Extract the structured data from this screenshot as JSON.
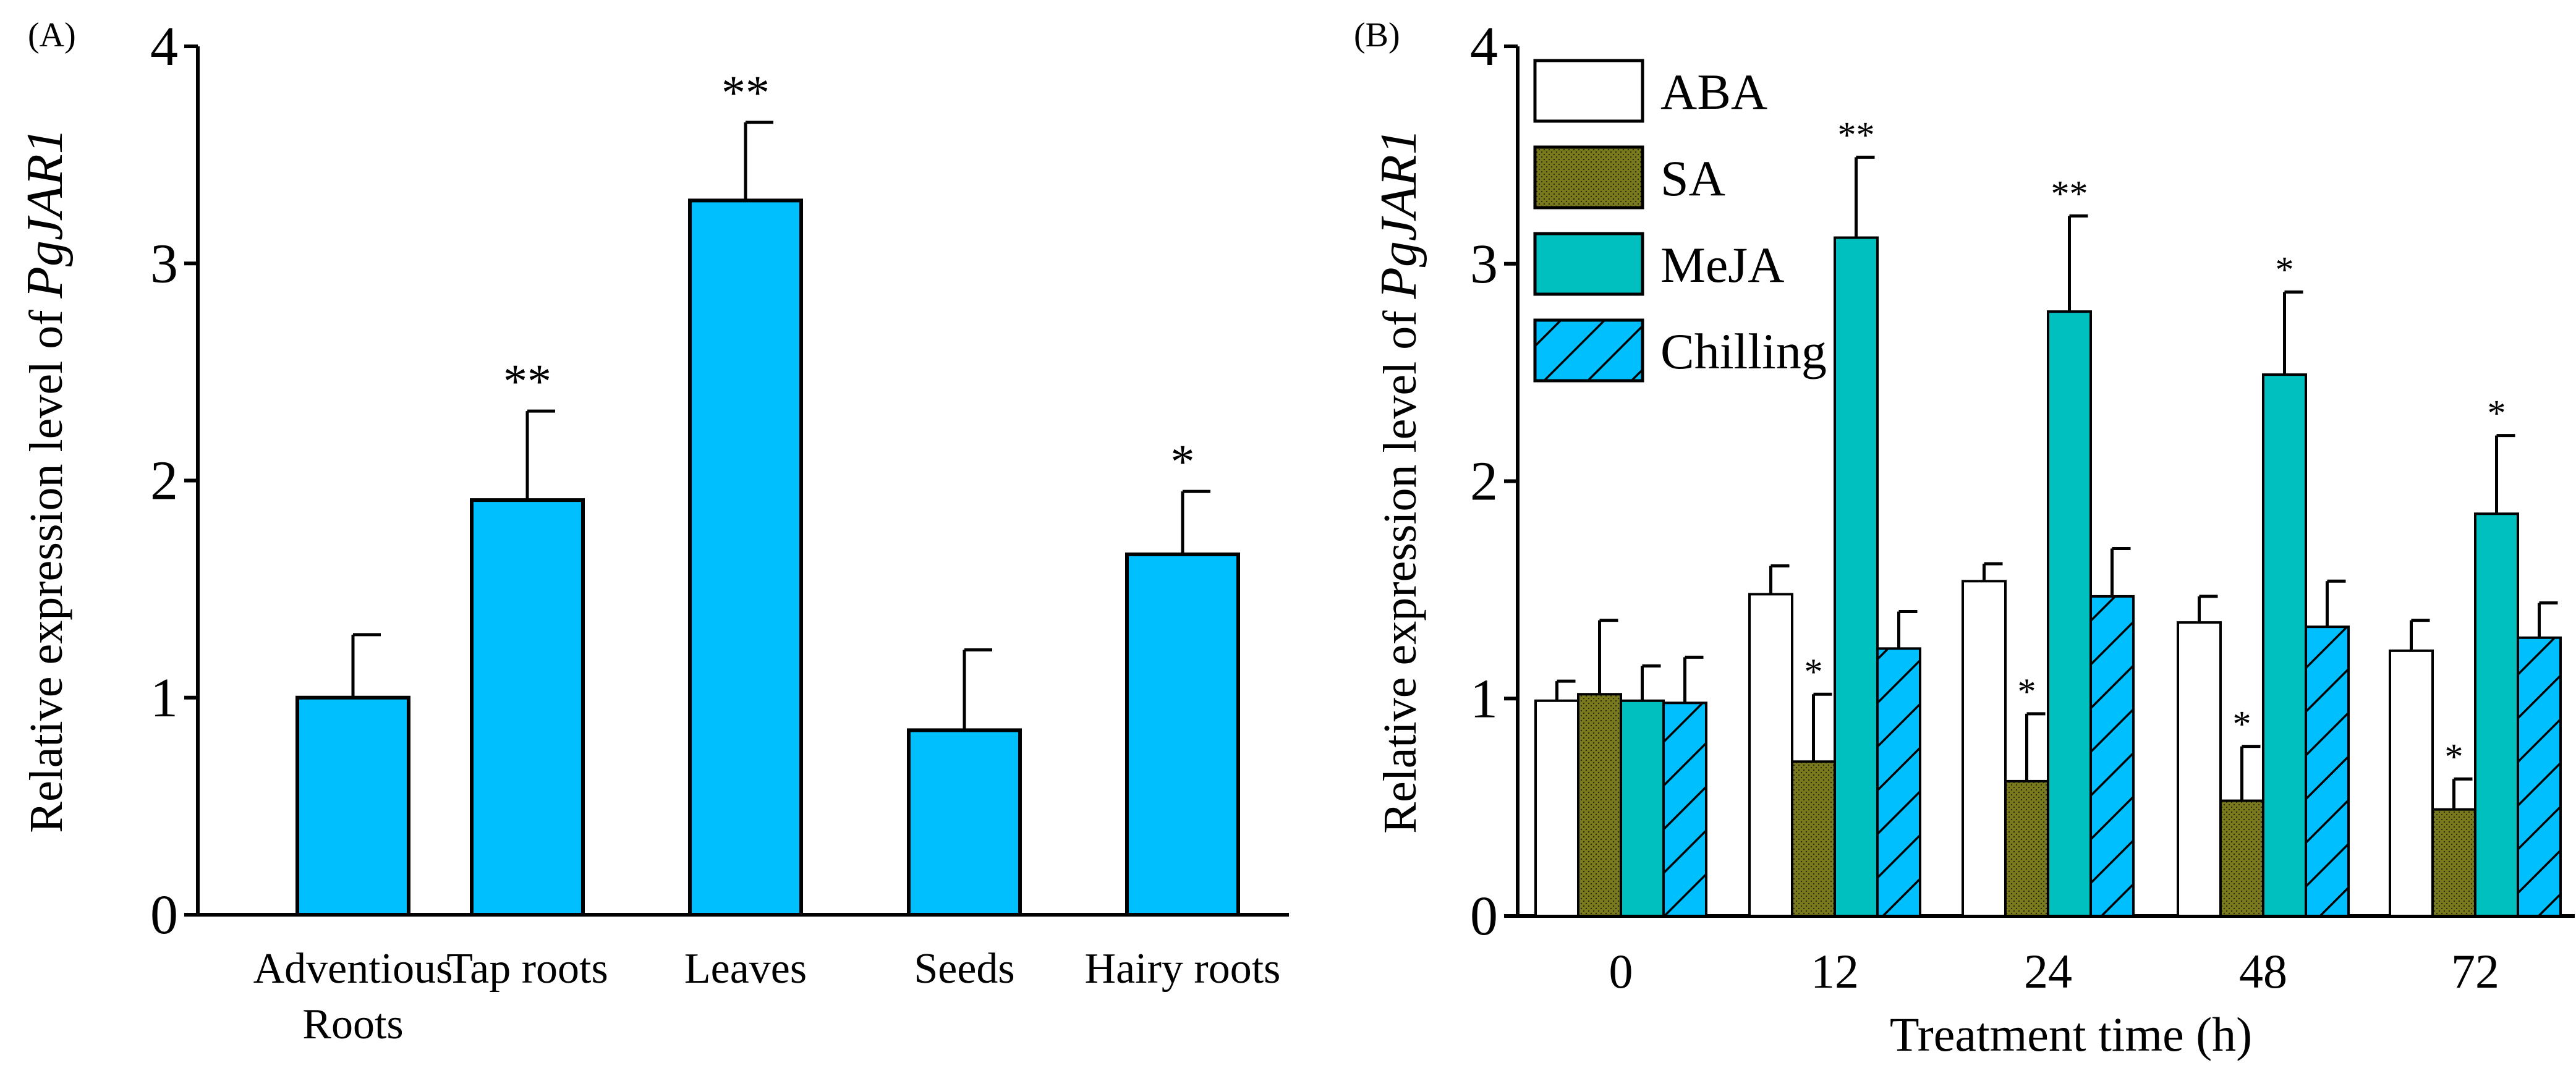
{
  "chart_data": [
    {
      "type": "bar",
      "panel_label": "(A)",
      "ylabel_prefix": "Relative expression level of ",
      "ylabel_gene": "PgJAR1",
      "xlabel": "",
      "ylim": [
        0,
        4
      ],
      "yticks": [
        "0",
        "1",
        "2",
        "3",
        "4"
      ],
      "categories": [
        "Adventious|Roots",
        "Tap roots",
        "Leaves",
        "Seeds",
        "Hairy roots"
      ],
      "values": [
        1.0,
        1.91,
        3.29,
        0.85,
        1.66
      ],
      "error_top": [
        1.29,
        2.32,
        3.65,
        1.22,
        1.95
      ],
      "significance": [
        "",
        "**",
        "**",
        "",
        "*"
      ],
      "color": "#00BFFF"
    },
    {
      "type": "bar",
      "panel_label": "(B)",
      "ylabel_prefix": "Relative expression level of ",
      "ylabel_gene": "PgJAR1",
      "xlabel": "Treatment time (h)",
      "ylim": [
        0,
        4
      ],
      "yticks": [
        "0",
        "1",
        "2",
        "3",
        "4"
      ],
      "categories": [
        "0",
        "12",
        "24",
        "48",
        "72"
      ],
      "legend_position": "top-left",
      "series": [
        {
          "name": "ABA",
          "color": "#FFFFFF",
          "pattern": "none",
          "values": [
            0.99,
            1.48,
            1.54,
            1.35,
            1.22
          ],
          "error_top": [
            1.08,
            1.61,
            1.62,
            1.47,
            1.36
          ],
          "significance": [
            "",
            "",
            "",
            "",
            ""
          ]
        },
        {
          "name": "SA",
          "color": "#7A7A1E",
          "pattern": "dots",
          "values": [
            1.02,
            0.71,
            0.62,
            0.53,
            0.49
          ],
          "error_top": [
            1.36,
            1.02,
            0.93,
            0.78,
            0.63
          ],
          "significance": [
            "",
            "*",
            "*",
            "*",
            "*"
          ]
        },
        {
          "name": "MeJA",
          "color": "#00BFBF",
          "pattern": "none",
          "values": [
            0.99,
            3.12,
            2.78,
            2.49,
            1.85
          ],
          "error_top": [
            1.15,
            3.49,
            3.22,
            2.87,
            2.21
          ],
          "significance": [
            "",
            "**",
            "**",
            "*",
            "*"
          ]
        },
        {
          "name": "Chilling",
          "color": "#00BFFF",
          "pattern": "hatch",
          "values": [
            0.98,
            1.23,
            1.47,
            1.33,
            1.28
          ],
          "error_top": [
            1.19,
            1.4,
            1.69,
            1.54,
            1.44
          ],
          "significance": [
            "",
            "",
            "",
            "",
            ""
          ]
        }
      ]
    }
  ]
}
